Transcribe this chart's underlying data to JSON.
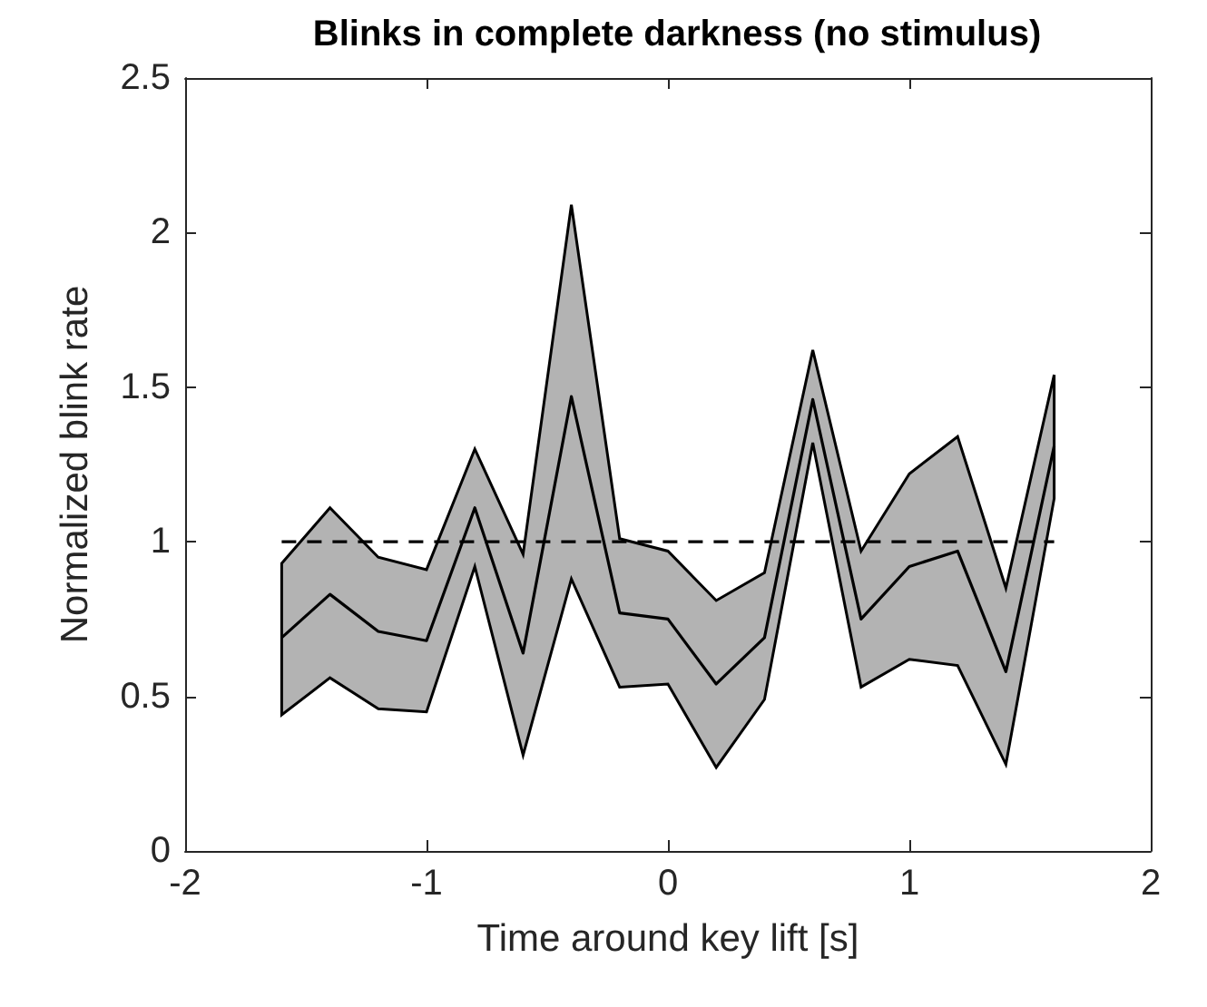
{
  "chart_data": {
    "type": "line",
    "title": "Blinks in complete darkness (no stimulus)",
    "xlabel": "Time around key lift [s]",
    "ylabel": "Normalized blink rate",
    "xlim": [
      -2,
      2
    ],
    "xticks": [
      -2,
      -1,
      0,
      1,
      2
    ],
    "ylim": [
      0,
      2.5
    ],
    "yticks": [
      0,
      0.5,
      1,
      1.5,
      2,
      2.5
    ],
    "grid": false,
    "marker": "none",
    "series": [
      {
        "color": "#000000",
        "line_style": "solid",
        "x": [
          -1.6,
          -1.4,
          -1.2,
          -1.0,
          -0.8,
          -0.6,
          -0.4,
          -0.2,
          0,
          0.2,
          0.4,
          0.6,
          0.8,
          1.0,
          1.2,
          1.4,
          1.6
        ],
        "values": [
          0.69,
          0.83,
          0.71,
          0.68,
          1.11,
          0.64,
          1.47,
          0.77,
          0.75,
          0.54,
          0.69,
          1.46,
          0.75,
          0.92,
          0.97,
          0.58,
          1.31
        ],
        "lower": [
          0.44,
          0.56,
          0.46,
          0.45,
          0.92,
          0.31,
          0.88,
          0.53,
          0.54,
          0.27,
          0.49,
          1.32,
          0.53,
          0.62,
          0.6,
          0.28,
          1.14
        ],
        "upper": [
          0.93,
          1.11,
          0.95,
          0.91,
          1.3,
          0.96,
          2.09,
          1.01,
          0.97,
          0.81,
          0.9,
          1.62,
          0.97,
          1.22,
          1.34,
          0.85,
          1.54
        ]
      },
      {
        "color": "#000000",
        "line_style": "dashed",
        "x": [
          -1.6,
          1.6
        ],
        "values": [
          1,
          1
        ]
      }
    ]
  }
}
